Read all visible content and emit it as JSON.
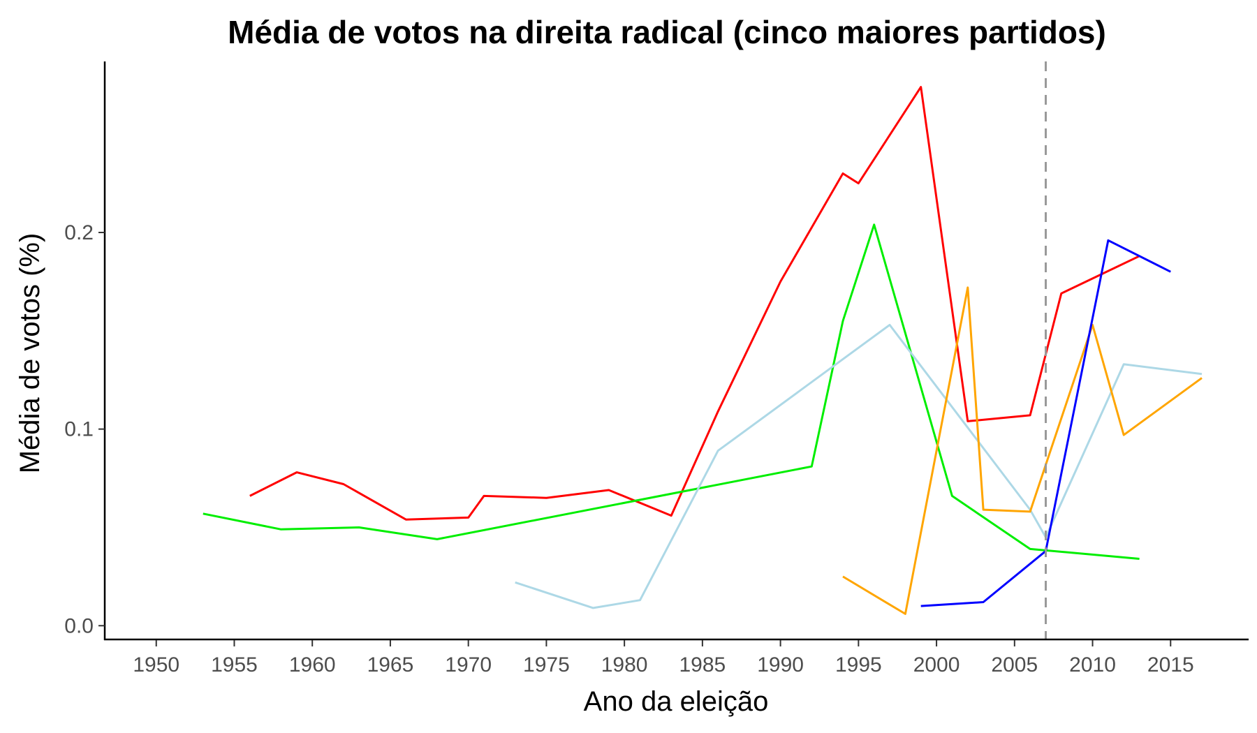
{
  "chart_data": {
    "type": "line",
    "title": "Média de votos na direita radical (cinco maiores partidos)",
    "xlabel": "Ano da eleição",
    "ylabel": "Média de votos (%)",
    "xlim": [
      1946.7,
      2020
    ],
    "ylim": [
      -0.007,
      0.287
    ],
    "x_ticks": [
      1950,
      1955,
      1960,
      1965,
      1970,
      1975,
      1980,
      1985,
      1990,
      1995,
      2000,
      2005,
      2010,
      2015
    ],
    "x_tick_labels": [
      "1950",
      "1955",
      "1960",
      "1965",
      "1970",
      "1975",
      "1980",
      "1985",
      "1990",
      "1995",
      "2000",
      "2005",
      "2010",
      "2015"
    ],
    "y_ticks": [
      0.0,
      0.1,
      0.2
    ],
    "y_tick_labels": [
      "0.0",
      "0.1",
      "0.2"
    ],
    "grid": false,
    "legend": "none",
    "reference_line": {
      "x": 2007,
      "style": "dashed",
      "color": "#999999"
    },
    "series": [
      {
        "color": "#ff0000",
        "points": [
          [
            1956,
            0.066
          ],
          [
            1959,
            0.078
          ],
          [
            1962,
            0.072
          ],
          [
            1966,
            0.054
          ],
          [
            1970,
            0.055
          ],
          [
            1971,
            0.066
          ],
          [
            1975,
            0.065
          ],
          [
            1979,
            0.069
          ],
          [
            1983,
            0.056
          ],
          [
            1986,
            0.109
          ],
          [
            1990,
            0.175
          ],
          [
            1994,
            0.23
          ],
          [
            1995,
            0.225
          ],
          [
            1999,
            0.274
          ],
          [
            2002,
            0.104
          ],
          [
            2006,
            0.107
          ],
          [
            2008,
            0.169
          ],
          [
            2013,
            0.188
          ]
        ]
      },
      {
        "color": "#00ee00",
        "points": [
          [
            1953,
            0.057
          ],
          [
            1958,
            0.049
          ],
          [
            1963,
            0.05
          ],
          [
            1968,
            0.044
          ],
          [
            1992,
            0.081
          ],
          [
            1994,
            0.155
          ],
          [
            1996,
            0.204
          ],
          [
            2001,
            0.066
          ],
          [
            2006,
            0.039
          ],
          [
            2013,
            0.034
          ]
        ]
      },
      {
        "color": "#add8e6",
        "points": [
          [
            1973,
            0.022
          ],
          [
            1978,
            0.009
          ],
          [
            1981,
            0.013
          ],
          [
            1986,
            0.089
          ],
          [
            1997,
            0.153
          ],
          [
            2006,
            0.059
          ],
          [
            2007,
            0.045
          ],
          [
            2012,
            0.133
          ],
          [
            2017,
            0.128
          ]
        ]
      },
      {
        "color": "#ffa500",
        "points": [
          [
            1994,
            0.025
          ],
          [
            1998,
            0.006
          ],
          [
            2002,
            0.172
          ],
          [
            2003,
            0.059
          ],
          [
            2006,
            0.058
          ],
          [
            2010,
            0.153
          ],
          [
            2012,
            0.097
          ],
          [
            2017,
            0.126
          ]
        ]
      },
      {
        "color": "#0000ff",
        "points": [
          [
            1999,
            0.01
          ],
          [
            2003,
            0.012
          ],
          [
            2007,
            0.038
          ],
          [
            2011,
            0.196
          ],
          [
            2015,
            0.18
          ]
        ]
      }
    ]
  }
}
